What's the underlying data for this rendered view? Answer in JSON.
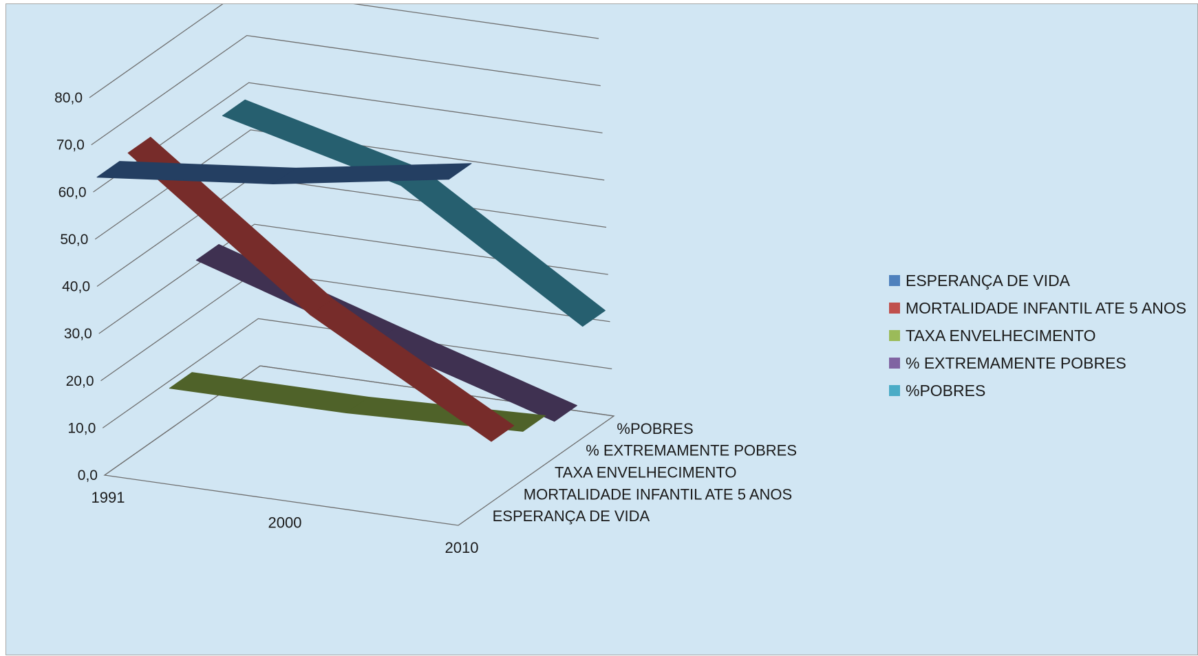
{
  "chart_data": {
    "type": "line",
    "variant": "3d-ribbon",
    "x": [
      "1991",
      "2000",
      "2010"
    ],
    "ylim": [
      0,
      80
    ],
    "yticks": [
      "0,0",
      "10,0",
      "20,0",
      "30,0",
      "40,0",
      "50,0",
      "60,0",
      "70,0",
      "80,0"
    ],
    "grid": true,
    "legend_position": "right",
    "series": [
      {
        "name": "ESPERANÇA DE VIDA",
        "values": [
          62.5,
          66.4,
          72.7
        ],
        "color": "#4f81bd",
        "ribbon_color": "#243f62"
      },
      {
        "name": "MORTALIDADE INFANTIL ATE 5 ANOS",
        "values": [
          63.0,
          34.0,
          12.5
        ],
        "color": "#c0504d",
        "ribbon_color": "#772c2a"
      },
      {
        "name": "TAXA ENVELHECIMENTO",
        "values": [
          8.5,
          8.6,
          10.0
        ],
        "color": "#9bbb59",
        "ribbon_color": "#4f6229"
      },
      {
        "name": "% EXTREMAMENTE POBRES",
        "values": [
          31.0,
          19.0,
          7.5
        ],
        "color": "#8064a2",
        "ribbon_color": "#3f3151"
      },
      {
        "name": "%POBRES",
        "values": [
          57.0,
          47.5,
          23.0
        ],
        "color": "#4bacc6",
        "ribbon_color": "#265f6f"
      }
    ]
  }
}
